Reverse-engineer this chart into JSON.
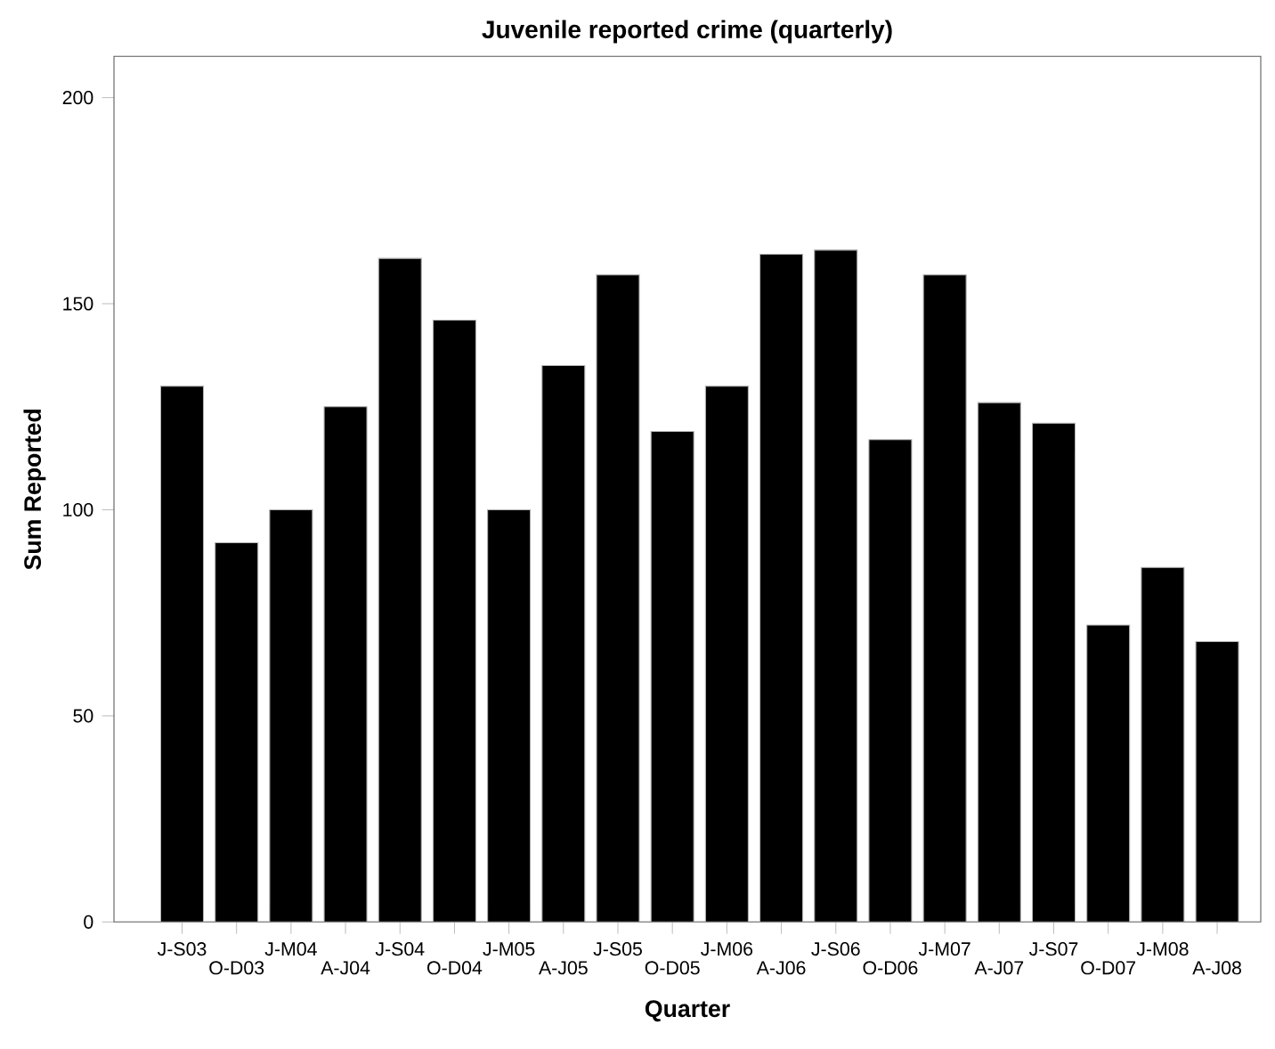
{
  "chart_data": {
    "type": "bar",
    "title": "Juvenile reported crime (quarterly)",
    "xlabel": "Quarter",
    "ylabel": "Sum Reported",
    "categories": [
      "J-S03",
      "O-D03",
      "J-M04",
      "A-J04",
      "J-S04",
      "O-D04",
      "J-M05",
      "A-J05",
      "J-S05",
      "O-D05",
      "J-M06",
      "A-J06",
      "J-S06",
      "O-D06",
      "J-M07",
      "A-J07",
      "J-S07",
      "O-D07",
      "J-M08",
      "A-J08"
    ],
    "values": [
      130,
      92,
      100,
      125,
      161,
      146,
      100,
      135,
      157,
      119,
      130,
      162,
      163,
      117,
      157,
      126,
      121,
      72,
      86,
      68
    ],
    "color": "#000000",
    "ylim": [
      0,
      210
    ],
    "yticks": [
      0,
      50,
      100,
      150,
      200
    ],
    "grid": false
  }
}
